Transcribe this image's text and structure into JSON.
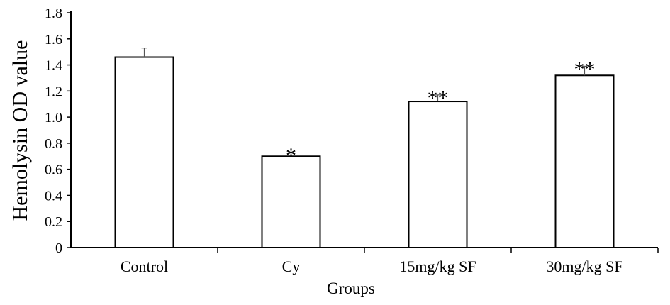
{
  "chart_data": {
    "type": "bar",
    "title": "",
    "xlabel": "Groups",
    "ylabel": "Hemolysin OD value",
    "categories": [
      "Control",
      "Cy",
      "15mg/kg SF",
      "30mg/kg SF"
    ],
    "values": [
      1.46,
      0.7,
      1.12,
      1.32
    ],
    "errors": [
      0.07,
      0.03,
      0.05,
      0.07
    ],
    "significance": [
      "",
      "*",
      "**",
      "**"
    ],
    "ylim": [
      0,
      1.8
    ],
    "yticks": [
      0,
      0.2,
      0.4,
      0.6,
      0.8,
      1.0,
      1.2,
      1.4,
      1.6,
      1.8
    ],
    "ytick_labels": [
      "0",
      "0.2",
      "0.4",
      "0.6",
      "0.8",
      "1.0",
      "1.2",
      "1.4",
      "1.6",
      "1.8"
    ],
    "grid": false,
    "legend": "none",
    "bar_fill": "#ffffff",
    "bar_edge": "#000000"
  }
}
